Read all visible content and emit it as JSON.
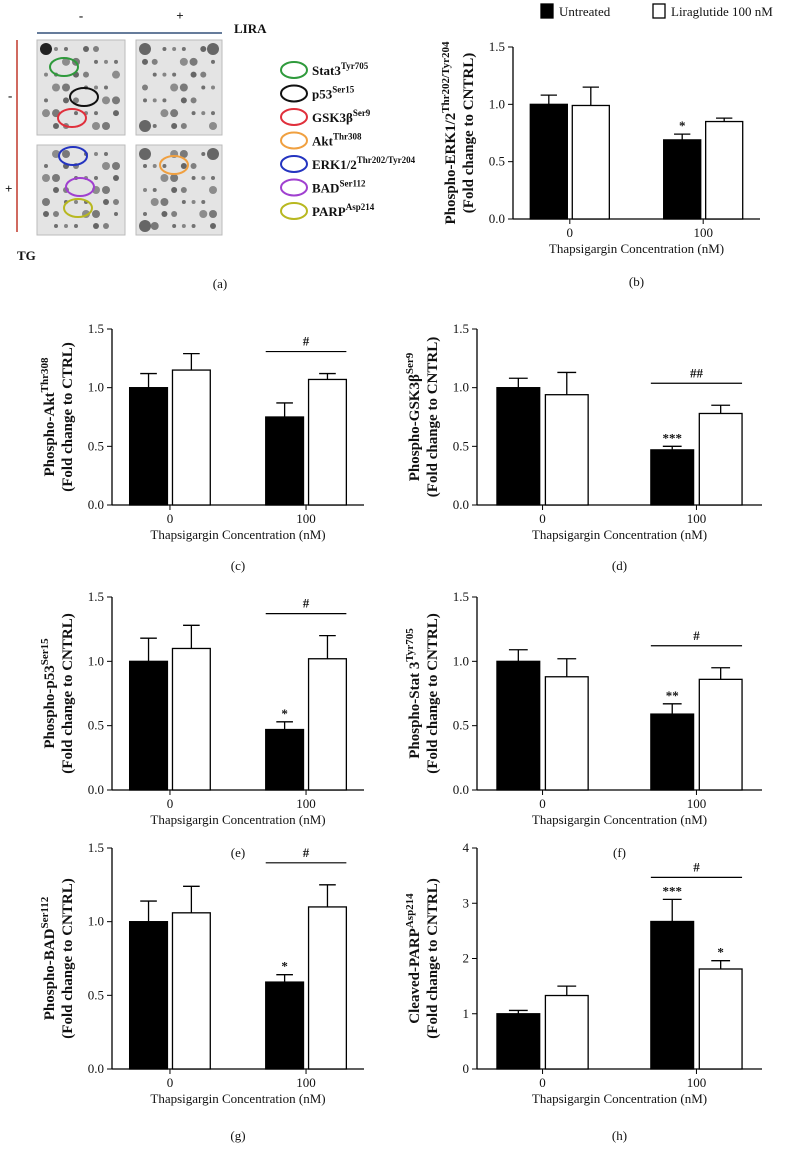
{
  "blot": {
    "lira_label": "LIRA",
    "lira_minus": "-",
    "lira_plus": "+",
    "tg_label": "TG",
    "tg_minus": "-",
    "tg_plus": "+",
    "caption": "(a)",
    "targets": [
      {
        "name": "Stat3",
        "sup": "Tyr705",
        "color": "#2f9a3c"
      },
      {
        "name": "p53",
        "sup": "Ser15",
        "color": "#111111"
      },
      {
        "name": "GSK3β",
        "sup": "Ser9",
        "color": "#e0303c"
      },
      {
        "name": "Akt",
        "sup": "Thr308",
        "color": "#f0a040"
      },
      {
        "name": "ERK1/2",
        "sup": "Thr202/Tyr204",
        "color": "#2434c0"
      },
      {
        "name": "BAD",
        "sup": "Ser112",
        "color": "#a040d0"
      },
      {
        "name": "PARP",
        "sup": "Asp214",
        "color": "#b8b820"
      }
    ]
  },
  "chart_data": [
    {
      "type": "bar",
      "caption": "(b)",
      "ylabel": "Phospho-ERK1/2",
      "ylabel_sup": "Thr202/Tyr204",
      "ylabel2": "(Fold change to CNTRL)",
      "xlabel": "Thapsigargin Concentration (nM)",
      "categories": [
        "0",
        "100"
      ],
      "ylim": [
        0,
        1.5
      ],
      "yticks": [
        {
          "value": 0,
          "label": "0.0"
        },
        {
          "value": 0.5,
          "label": "0.5"
        },
        {
          "value": 1,
          "label": "1.0"
        },
        {
          "value": 1.5,
          "label": "1.5"
        }
      ],
      "series": [
        {
          "name": "Untreated",
          "color": "#000000",
          "values": [
            1.0,
            0.69
          ],
          "errors": [
            0.08,
            0.05
          ],
          "stars": [
            null,
            "*"
          ]
        },
        {
          "name": "Liraglutide 100 nM",
          "color": "#ffffff",
          "values": [
            0.99,
            0.85
          ],
          "errors": [
            0.16,
            0.03
          ],
          "stars": [
            null,
            null
          ]
        }
      ]
    },
    {
      "type": "bar",
      "caption": "(c)",
      "ylabel": "Phospho-Akt",
      "ylabel_sup": "Thr308",
      "ylabel2": "(Fold change to CTRL)",
      "xlabel": "Thapsigargin Concentration (nM)",
      "categories": [
        "0",
        "100"
      ],
      "ylim": [
        0,
        1.5
      ],
      "yticks": [
        {
          "value": 0,
          "label": "0.0"
        },
        {
          "value": 0.5,
          "label": "0.5"
        },
        {
          "value": 1,
          "label": "1.0"
        },
        {
          "value": 1.5,
          "label": "1.5"
        }
      ],
      "bracket": "#",
      "series": [
        {
          "color": "#000000",
          "values": [
            1.0,
            0.75
          ],
          "errors": [
            0.12,
            0.12
          ],
          "stars": [
            null,
            null
          ]
        },
        {
          "color": "#ffffff",
          "values": [
            1.15,
            1.07
          ],
          "errors": [
            0.14,
            0.05
          ],
          "stars": [
            null,
            null
          ]
        }
      ]
    },
    {
      "type": "bar",
      "caption": "(d)",
      "ylabel": "Phospho-GSK3β",
      "ylabel_sup": "Ser9",
      "ylabel2": "(Fold change to CNTRL)",
      "xlabel": "Thapsigargin Concentration (nM)",
      "categories": [
        "0",
        "100"
      ],
      "ylim": [
        0,
        1.5
      ],
      "yticks": [
        {
          "value": 0,
          "label": "0.0"
        },
        {
          "value": 0.5,
          "label": "0.5"
        },
        {
          "value": 1,
          "label": "1.0"
        },
        {
          "value": 1.5,
          "label": "1.5"
        }
      ],
      "bracket": "##",
      "series": [
        {
          "color": "#000000",
          "values": [
            1.0,
            0.47
          ],
          "errors": [
            0.08,
            0.03
          ],
          "stars": [
            null,
            "***"
          ]
        },
        {
          "color": "#ffffff",
          "values": [
            0.94,
            0.78
          ],
          "errors": [
            0.19,
            0.07
          ],
          "stars": [
            null,
            null
          ]
        }
      ]
    },
    {
      "type": "bar",
      "caption": "(e)",
      "ylabel": "Phospho-p53",
      "ylabel_sup": "Ser15",
      "ylabel2": "(Fold change to CNTRL)",
      "xlabel": "Thapsigargin Concentration (nM)",
      "categories": [
        "0",
        "100"
      ],
      "ylim": [
        0,
        1.5
      ],
      "yticks": [
        {
          "value": 0,
          "label": "0.0"
        },
        {
          "value": 0.5,
          "label": "0.5"
        },
        {
          "value": 1,
          "label": "1.0"
        },
        {
          "value": 1.5,
          "label": "1.5"
        }
      ],
      "bracket": "#",
      "series": [
        {
          "color": "#000000",
          "values": [
            1.0,
            0.47
          ],
          "errors": [
            0.18,
            0.06
          ],
          "stars": [
            null,
            "*"
          ]
        },
        {
          "color": "#ffffff",
          "values": [
            1.1,
            1.02
          ],
          "errors": [
            0.18,
            0.18
          ],
          "stars": [
            null,
            null
          ]
        }
      ]
    },
    {
      "type": "bar",
      "caption": "(f)",
      "ylabel": "Phospho-Stat 3",
      "ylabel_sup": "Tyr705",
      "ylabel2": "(Fold change to CNTRL)",
      "xlabel": "Thapsigargin Concentration (nM)",
      "categories": [
        "0",
        "100"
      ],
      "ylim": [
        0,
        1.5
      ],
      "yticks": [
        {
          "value": 0,
          "label": "0.0"
        },
        {
          "value": 0.5,
          "label": "0.5"
        },
        {
          "value": 1,
          "label": "1.0"
        },
        {
          "value": 1.5,
          "label": "1.5"
        }
      ],
      "bracket": "#",
      "series": [
        {
          "color": "#000000",
          "values": [
            1.0,
            0.59
          ],
          "errors": [
            0.09,
            0.08
          ],
          "stars": [
            null,
            "**"
          ]
        },
        {
          "color": "#ffffff",
          "values": [
            0.88,
            0.86
          ],
          "errors": [
            0.14,
            0.09
          ],
          "stars": [
            null,
            null
          ]
        }
      ]
    },
    {
      "type": "bar",
      "caption": "(g)",
      "ylabel": "Phospho-BAD",
      "ylabel_sup": "Ser112",
      "ylabel2": "(Fold change to CNTRL)",
      "xlabel": "Thapsigargin Concentration (nM)",
      "categories": [
        "0",
        "100"
      ],
      "ylim": [
        0,
        1.5
      ],
      "yticks": [
        {
          "value": 0,
          "label": "0.0"
        },
        {
          "value": 0.5,
          "label": "0.5"
        },
        {
          "value": 1,
          "label": "1.0"
        },
        {
          "value": 1.5,
          "label": "1.5"
        }
      ],
      "bracket": "#",
      "series": [
        {
          "color": "#000000",
          "values": [
            1.0,
            0.59
          ],
          "errors": [
            0.14,
            0.05
          ],
          "stars": [
            null,
            "*"
          ]
        },
        {
          "color": "#ffffff",
          "values": [
            1.06,
            1.1
          ],
          "errors": [
            0.18,
            0.15
          ],
          "stars": [
            null,
            null
          ]
        }
      ]
    },
    {
      "type": "bar",
      "caption": "(h)",
      "ylabel": "Cleaved-PARP",
      "ylabel_sup": "Asp214",
      "ylabel2": "(Fold change to CNTRL)",
      "xlabel": "Thapsigargin Concentration (nM)",
      "categories": [
        "0",
        "100"
      ],
      "ylim": [
        0,
        4
      ],
      "yticks": [
        0,
        1,
        2,
        3,
        4
      ],
      "bracket": "#",
      "series": [
        {
          "color": "#000000",
          "values": [
            1.0,
            2.67
          ],
          "errors": [
            0.06,
            0.4
          ],
          "stars": [
            null,
            "***"
          ]
        },
        {
          "color": "#ffffff",
          "values": [
            1.33,
            1.81
          ],
          "errors": [
            0.17,
            0.15
          ],
          "stars": [
            null,
            "*"
          ]
        }
      ]
    }
  ]
}
